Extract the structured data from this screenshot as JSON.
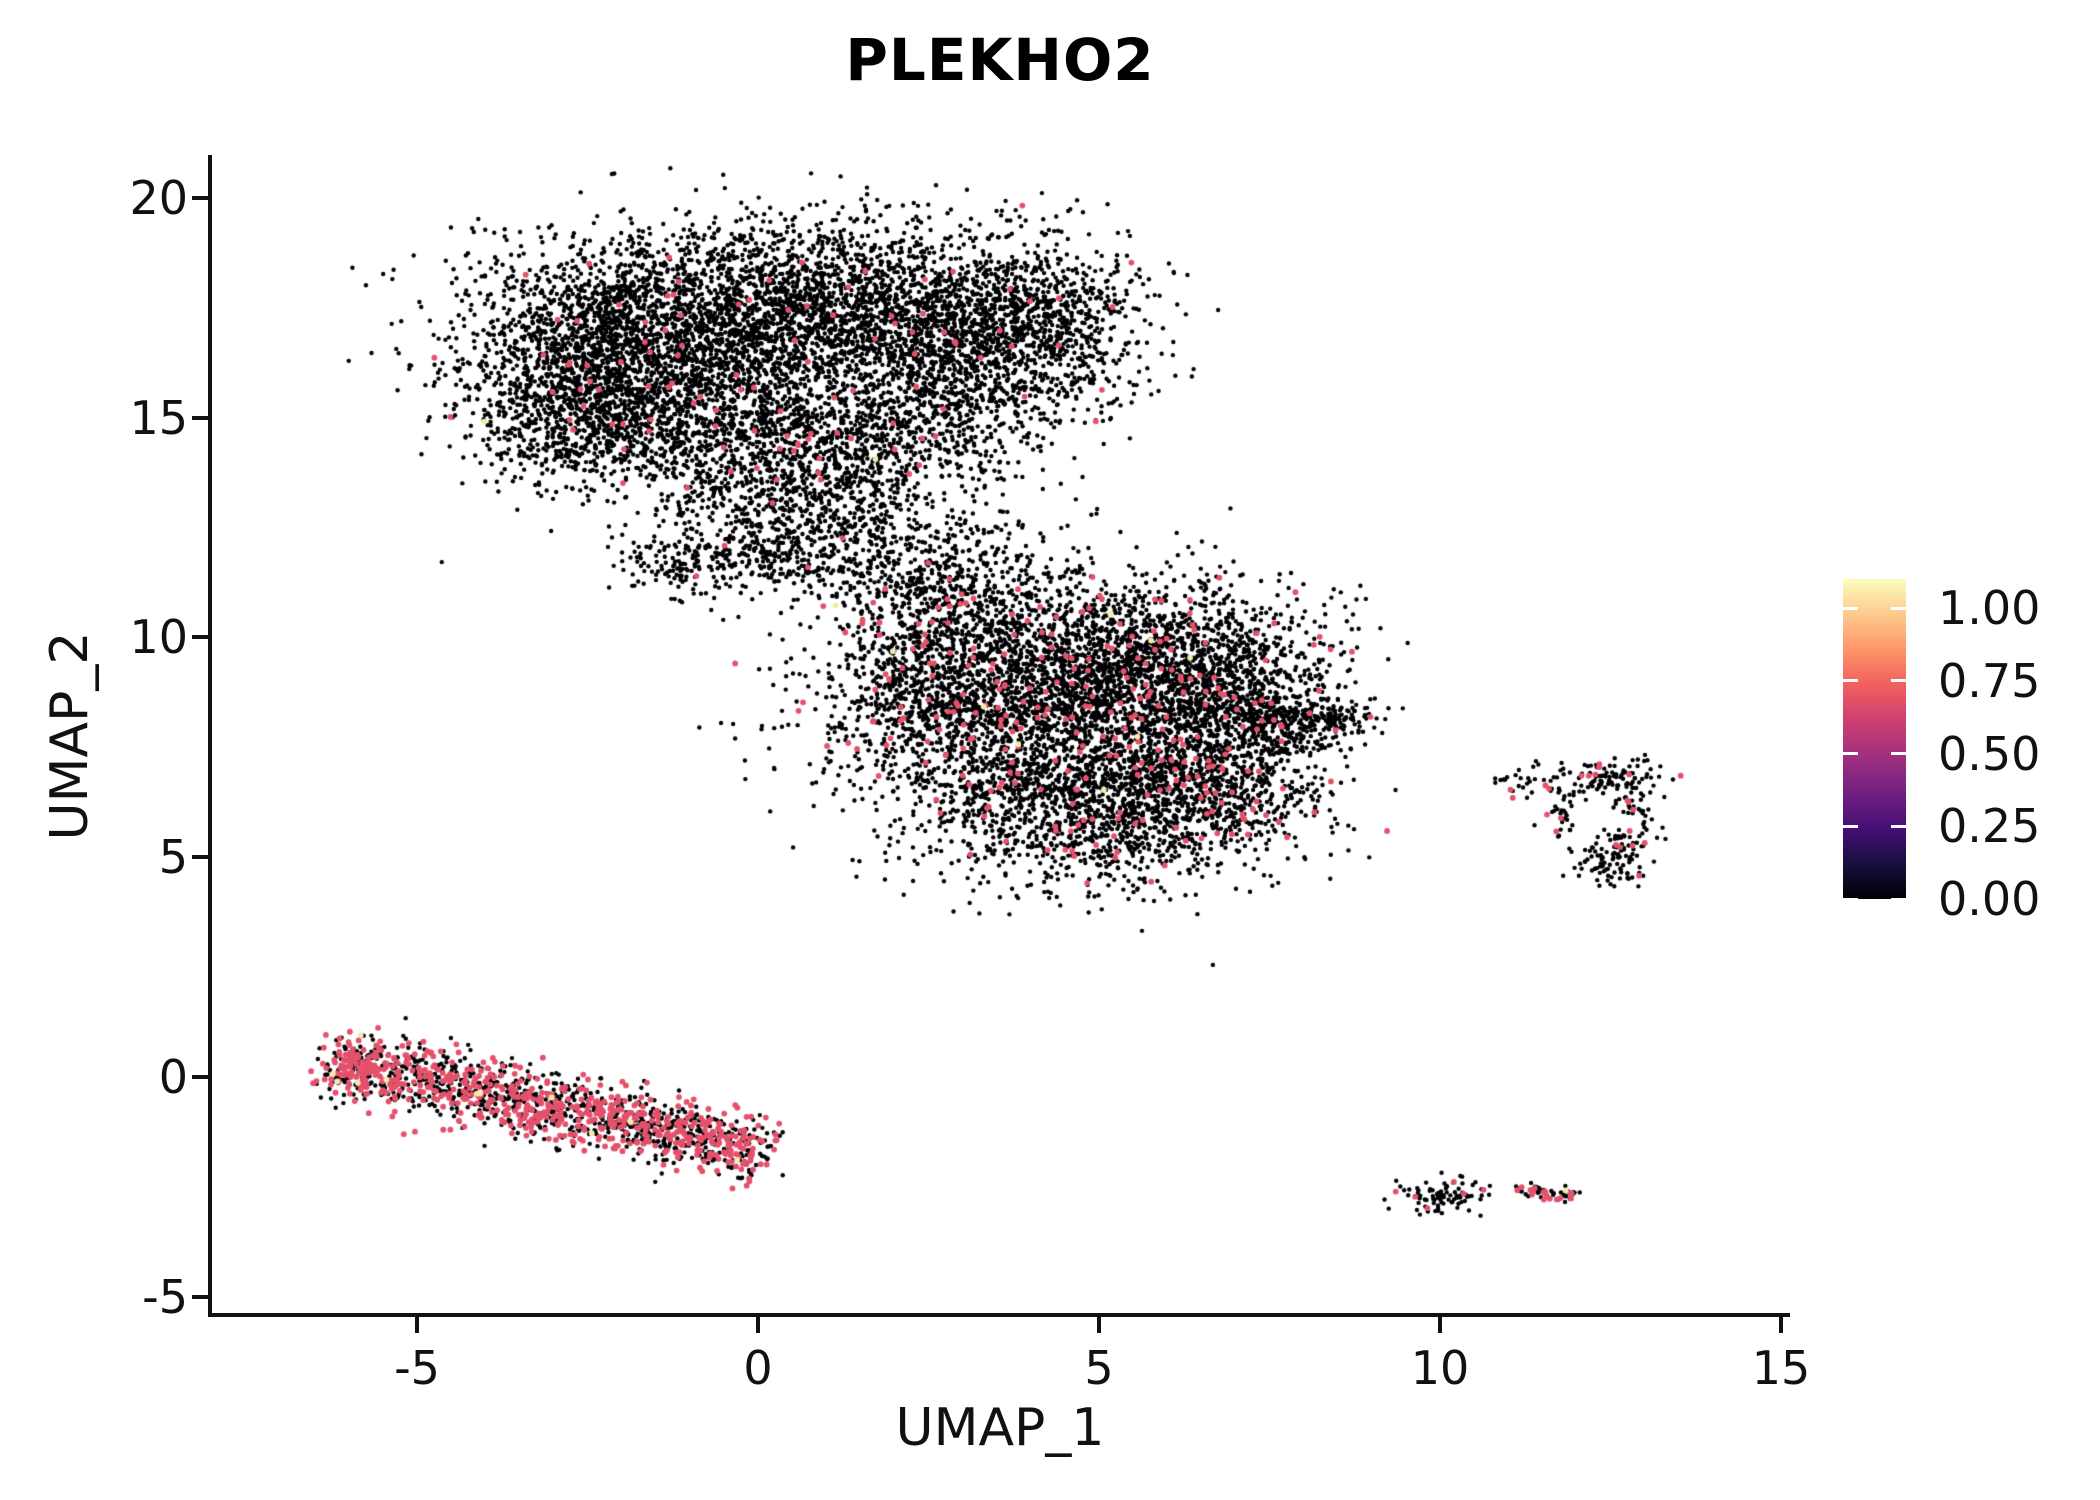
{
  "title": "PLEKHO2",
  "axes": {
    "x_label": "UMAP_1",
    "y_label": "UMAP_2"
  },
  "legend": {
    "tick_labels": [
      "1.00",
      "0.75",
      "0.50",
      "0.25",
      "0.00"
    ]
  },
  "chart_data": {
    "type": "scatter",
    "title": "PLEKHO2",
    "xlabel": "UMAP_1",
    "ylabel": "UMAP_2",
    "xlim": [
      -8.1,
      16.6
    ],
    "ylim": [
      -5.6,
      21.0
    ],
    "grid": false,
    "x_ticks": [
      {
        "value": -5,
        "label": "-5"
      },
      {
        "value": 0,
        "label": "0"
      },
      {
        "value": 5,
        "label": "5"
      },
      {
        "value": 10,
        "label": "10"
      },
      {
        "value": 15,
        "label": "15"
      }
    ],
    "y_ticks": [
      {
        "value": 20,
        "label": "20"
      },
      {
        "value": 15,
        "label": "15"
      },
      {
        "value": 10,
        "label": "10"
      },
      {
        "value": 5,
        "label": "5"
      },
      {
        "value": 0,
        "label": "0"
      },
      {
        "value": -5,
        "label": "-5"
      }
    ],
    "colorbar": {
      "position": "right",
      "colormap": "magma",
      "value_range": [
        0,
        1.1
      ],
      "tick_values": [
        1.0,
        0.75,
        0.5,
        0.25,
        0.0
      ],
      "tick_labels": [
        "1.00",
        "0.75",
        "0.50",
        "0.25",
        "0.00"
      ],
      "gradient_stops": [
        {
          "pos": 0.0,
          "color": "#000004"
        },
        {
          "pos": 0.11,
          "color": "#180f3d"
        },
        {
          "pos": 0.22,
          "color": "#440f76"
        },
        {
          "pos": 0.33,
          "color": "#721f81"
        },
        {
          "pos": 0.44,
          "color": "#9e2f7f"
        },
        {
          "pos": 0.56,
          "color": "#cd4071"
        },
        {
          "pos": 0.67,
          "color": "#f1605d"
        },
        {
          "pos": 0.78,
          "color": "#fd9668"
        },
        {
          "pos": 0.89,
          "color": "#feca8d"
        },
        {
          "pos": 1.0,
          "color": "#fcfdbf"
        }
      ]
    },
    "point_style": {
      "radius_zero_px": 2.2,
      "radius_expressing_px": 2.9,
      "color_zero": "#000004",
      "color_mid": "#E4516B",
      "color_high": "#F5EBA8",
      "mid_expression_value": 0.62,
      "high_expression_value": 0.97
    },
    "seed": 1234,
    "clusters": [
      {
        "name": "top-large-cluster",
        "frac_mid": 0.013,
        "frac_high": 0.0003,
        "blobs": [
          {
            "cx": -1.7,
            "cy": 16.8,
            "sx": 1.35,
            "sy": 1.15,
            "n": 2400
          },
          {
            "cx": 0.9,
            "cy": 17.5,
            "sx": 1.2,
            "sy": 1.0,
            "n": 1700
          },
          {
            "cx": 3.2,
            "cy": 16.6,
            "sx": 1.05,
            "sy": 1.25,
            "n": 1500
          },
          {
            "cx": 4.2,
            "cy": 17.4,
            "sx": 0.75,
            "sy": 0.8,
            "n": 420
          },
          {
            "cx": -2.6,
            "cy": 15.2,
            "sx": 0.85,
            "sy": 0.85,
            "n": 800
          },
          {
            "cx": -0.3,
            "cy": 14.6,
            "sx": 1.3,
            "sy": 0.9,
            "n": 900
          },
          {
            "cx": 1.8,
            "cy": 14.5,
            "sx": 0.9,
            "sy": 0.8,
            "n": 520
          },
          {
            "cx": 0.6,
            "cy": 13.2,
            "sx": 0.9,
            "sy": 0.6,
            "n": 360
          },
          {
            "cx": 0.4,
            "cy": 11.9,
            "sx": 1.05,
            "sy": 0.55,
            "n": 430
          },
          {
            "cx": -1.15,
            "cy": 11.7,
            "sx": 0.45,
            "sy": 0.3,
            "n": 90
          },
          {
            "cx": 2.6,
            "cy": 11.8,
            "sx": 0.95,
            "sy": 0.75,
            "n": 270
          }
        ]
      },
      {
        "name": "center-large-cluster",
        "frac_mid": 0.048,
        "frac_high": 0.0006,
        "blobs": [
          {
            "cx": 4.3,
            "cy": 8.6,
            "sx": 1.55,
            "sy": 1.35,
            "n": 3300
          },
          {
            "cx": 6.3,
            "cy": 9.4,
            "sx": 1.0,
            "sy": 0.9,
            "n": 1100
          },
          {
            "cx": 4.8,
            "cy": 5.9,
            "sx": 1.3,
            "sy": 0.85,
            "n": 1000
          },
          {
            "cx": 6.5,
            "cy": 6.6,
            "sx": 0.9,
            "sy": 0.8,
            "n": 700
          },
          {
            "cx": 7.6,
            "cy": 8.1,
            "sx": 0.6,
            "sy": 0.45,
            "n": 380
          },
          {
            "cx": 8.35,
            "cy": 8.15,
            "sx": 0.35,
            "sy": 0.18,
            "n": 90
          },
          {
            "cx": 2.9,
            "cy": 10.6,
            "sx": 0.75,
            "sy": 0.6,
            "n": 300
          },
          {
            "cx": 2.3,
            "cy": 9.0,
            "sx": 0.6,
            "sy": 0.85,
            "n": 260
          }
        ]
      },
      {
        "name": "bottom-left-band",
        "frac_mid": 0.42,
        "frac_high": 0.008,
        "band": {
          "from": [
            -6.1,
            0.3
          ],
          "to": [
            0.1,
            -1.7
          ],
          "width": 0.38,
          "jitter_x": 0.18,
          "n": 1500
        },
        "blobs": [
          {
            "cx": -6.0,
            "cy": 0.15,
            "sx": 0.3,
            "sy": 0.3,
            "n": 90
          }
        ]
      },
      {
        "name": "right-small-cluster",
        "frac_mid": 0.04,
        "frac_high": 0.006,
        "hole": {
          "x": 12.2,
          "y": 5.95,
          "r": 0.33
        },
        "blobs": [
          {
            "cx": 12.35,
            "cy": 6.85,
            "sx": 0.42,
            "sy": 0.22,
            "n": 110
          },
          {
            "cx": 12.82,
            "cy": 5.7,
            "sx": 0.18,
            "sy": 0.6,
            "n": 85
          },
          {
            "cx": 12.45,
            "cy": 4.95,
            "sx": 0.3,
            "sy": 0.28,
            "n": 70
          },
          {
            "cx": 11.85,
            "cy": 6.0,
            "sx": 0.18,
            "sy": 0.35,
            "n": 40
          },
          {
            "cx": 11.25,
            "cy": 6.6,
            "sx": 0.4,
            "sy": 0.18,
            "n": 22
          }
        ]
      },
      {
        "name": "bottom-right-left-clump",
        "frac_mid": 0.1,
        "frac_high": 0.0,
        "blobs": [
          {
            "cx": 10.05,
            "cy": -2.7,
            "sx": 0.3,
            "sy": 0.2,
            "n": 90
          }
        ]
      },
      {
        "name": "bottom-right-right-clump",
        "frac_mid": 0.28,
        "frac_high": 0.02,
        "band": {
          "from": [
            11.1,
            -2.5
          ],
          "to": [
            12.0,
            -2.72
          ],
          "width": 0.09,
          "jitter_x": 0.06,
          "n": 60
        }
      }
    ],
    "stray_points": [
      {
        "x": 6.67,
        "y": 2.55,
        "level": "zero"
      },
      {
        "x": 10.72,
        "y": -2.68,
        "level": "zero"
      }
    ]
  }
}
